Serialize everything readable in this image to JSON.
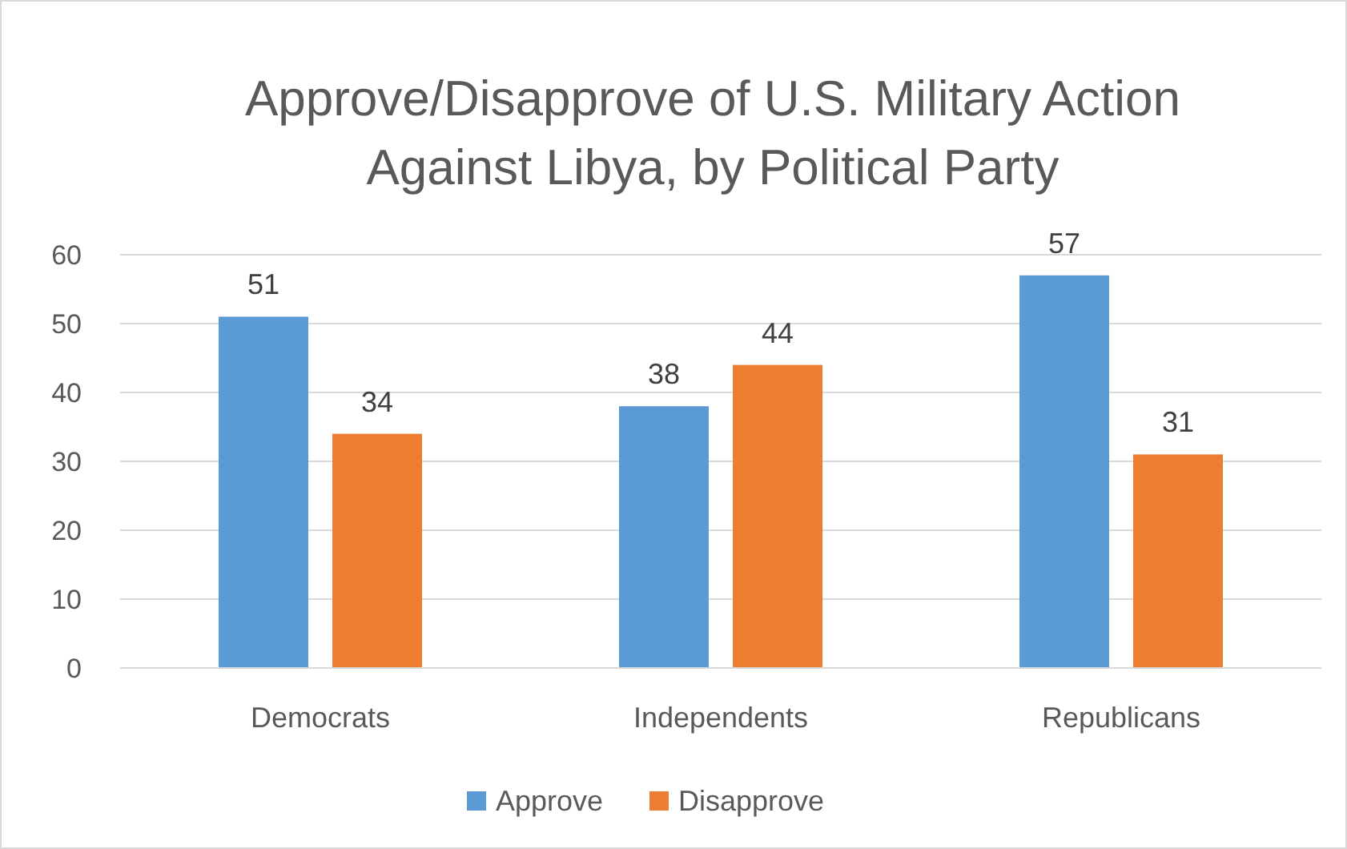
{
  "chart_data": {
    "type": "bar",
    "title": "Approve/Disapprove of U.S. Military Action Against Libya, by Political Party",
    "categories": [
      "Democrats",
      "Independents",
      "Republicans"
    ],
    "series": [
      {
        "name": "Approve",
        "color": "#5b9bd5",
        "values": [
          51,
          38,
          57
        ]
      },
      {
        "name": "Disapprove",
        "color": "#ed7d31",
        "values": [
          34,
          44,
          31
        ]
      }
    ],
    "ylim": [
      0,
      60
    ],
    "yticks": [
      0,
      10,
      20,
      30,
      40,
      50,
      60
    ],
    "grid": "y",
    "legend": "bottom",
    "data_labels": true
  }
}
